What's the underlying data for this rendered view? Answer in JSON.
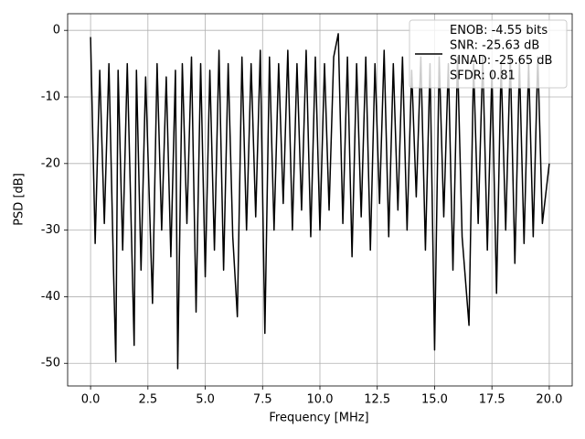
{
  "chart_data": {
    "type": "line",
    "xlabel": "Frequency [MHz]",
    "ylabel": "PSD [dB]",
    "x": [
      0.0,
      0.2,
      0.4,
      0.6,
      0.8,
      1.0,
      1.1,
      1.2,
      1.4,
      1.6,
      1.9,
      2.0,
      2.2,
      2.4,
      2.7,
      2.9,
      3.1,
      3.3,
      3.5,
      3.7,
      3.8,
      4.0,
      4.2,
      4.4,
      4.6,
      4.8,
      5.0,
      5.2,
      5.4,
      5.6,
      5.8,
      6.0,
      6.2,
      6.4,
      6.6,
      6.8,
      7.0,
      7.2,
      7.4,
      7.6,
      7.8,
      8.0,
      8.2,
      8.4,
      8.6,
      8.8,
      9.0,
      9.2,
      9.4,
      9.6,
      9.8,
      10.0,
      10.2,
      10.4,
      10.6,
      10.8,
      11.0,
      11.2,
      11.4,
      11.6,
      11.8,
      12.0,
      12.2,
      12.4,
      12.6,
      12.8,
      13.0,
      13.2,
      13.4,
      13.6,
      13.8,
      14.0,
      14.2,
      14.4,
      14.6,
      14.8,
      15.0,
      15.2,
      15.4,
      15.6,
      15.8,
      16.0,
      16.2,
      16.5,
      16.7,
      16.9,
      17.1,
      17.3,
      17.5,
      17.7,
      17.9,
      18.1,
      18.3,
      18.5,
      18.7,
      18.9,
      19.1,
      19.3,
      19.5,
      19.7,
      20.0
    ],
    "series": [
      {
        "name": "ENOB: -4.55 bits\nSNR: -25.63 dB\nSINAD: -25.65 dB\nSFDR: 0.81",
        "color": "#000000",
        "values": [
          -1,
          -32,
          -6,
          -29,
          -5,
          -36,
          -49.8,
          -6,
          -33,
          -5,
          -47.3,
          -6,
          -36,
          -7,
          -41,
          -5,
          -30,
          -7,
          -34,
          -6,
          -50.8,
          -5,
          -29,
          -4,
          -42.3,
          -5,
          -37,
          -6,
          -33,
          -3,
          -36,
          -5,
          -31,
          -43,
          -4,
          -30,
          -5,
          -28,
          -3,
          -45.5,
          -4,
          -30,
          -5,
          -26,
          -3,
          -30,
          -5,
          -27,
          -3,
          -31,
          -4,
          -30,
          -5,
          -27,
          -4,
          -0.5,
          -29,
          -4,
          -34,
          -5,
          -28,
          -4,
          -33,
          -5,
          -26,
          -3,
          -31,
          -5,
          -27,
          -4,
          -30,
          -6,
          -25,
          -4,
          -33,
          -5,
          -48,
          -4,
          -28,
          -5,
          -36,
          -4,
          -31,
          -44.3,
          -5,
          -29,
          -4,
          -33,
          -6,
          -39.5,
          -5,
          -30,
          -4,
          -35,
          -5,
          -32,
          -5,
          -31,
          -4,
          -29,
          -20
        ]
      }
    ],
    "xlim": [
      -1.0,
      21.0
    ],
    "ylim": [
      -53.4,
      2.5
    ],
    "xticks": [
      {
        "value": 0,
        "label": "0.0"
      },
      2.5,
      {
        "value": 5,
        "label": "5.0"
      },
      7.5,
      {
        "value": 10,
        "label": "10.0"
      },
      12.5,
      {
        "value": 15,
        "label": "15.0"
      },
      17.5,
      {
        "value": 20,
        "label": "20.0"
      }
    ],
    "yticks": [
      0,
      -10,
      -20,
      -30,
      -40,
      -50
    ],
    "grid": true,
    "legend": "upper right"
  }
}
